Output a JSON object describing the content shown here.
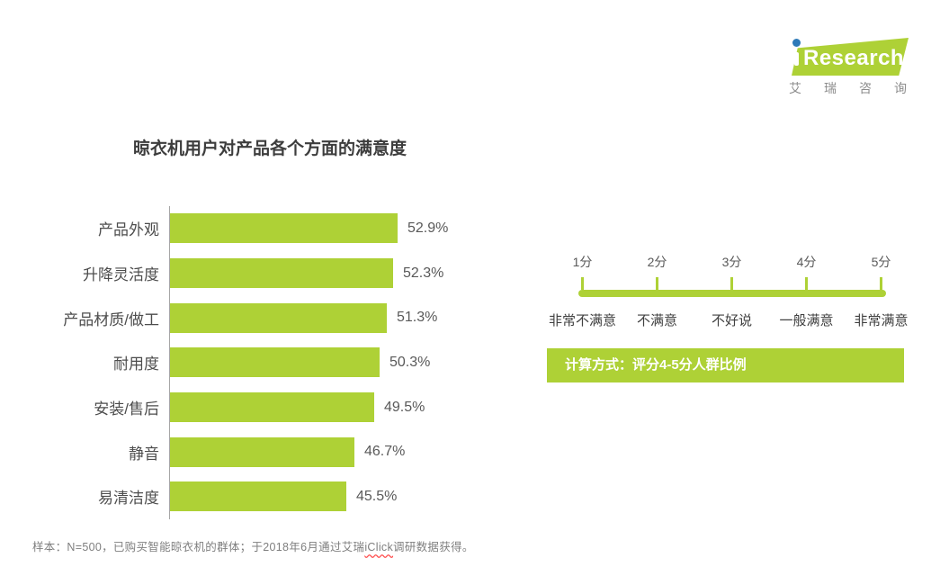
{
  "colors": {
    "green": "#aed136",
    "blue": "#2e7ab8"
  },
  "logo": {
    "brand_text": "Research",
    "subtitle_chars": [
      "艾",
      "瑞",
      "咨",
      "询"
    ]
  },
  "title": "晾衣机用户对产品各个方面的满意度",
  "chart_data": {
    "type": "bar",
    "orientation": "horizontal",
    "title": "晾衣机用户对产品各个方面的满意度",
    "categories": [
      "产品外观",
      "升降灵活度",
      "产品材质/做工",
      "耐用度",
      "安装/售后",
      "静音",
      "易清洁度"
    ],
    "values": [
      52.9,
      52.3,
      51.3,
      50.3,
      49.5,
      46.7,
      45.5
    ],
    "value_labels": [
      "52.9%",
      "52.3%",
      "51.3%",
      "50.3%",
      "49.5%",
      "46.7%",
      "45.5%"
    ],
    "unit": "%",
    "xlim": [
      20,
      55
    ],
    "grid": false,
    "bar_color": "#aed136"
  },
  "scale": {
    "scores": [
      "1分",
      "2分",
      "3分",
      "4分",
      "5分"
    ],
    "labels": [
      "非常不满意",
      "不满意",
      "不好说",
      "一般满意",
      "非常满意"
    ]
  },
  "method_box": {
    "text": "计算方式：评分4-5分人群比例"
  },
  "footnote": {
    "prefix": "样本：N=500，已购买智能晾衣机的群体；于2018年6月通过艾瑞",
    "spellcheck_word": "iClick",
    "suffix": "调研数据获得。"
  }
}
